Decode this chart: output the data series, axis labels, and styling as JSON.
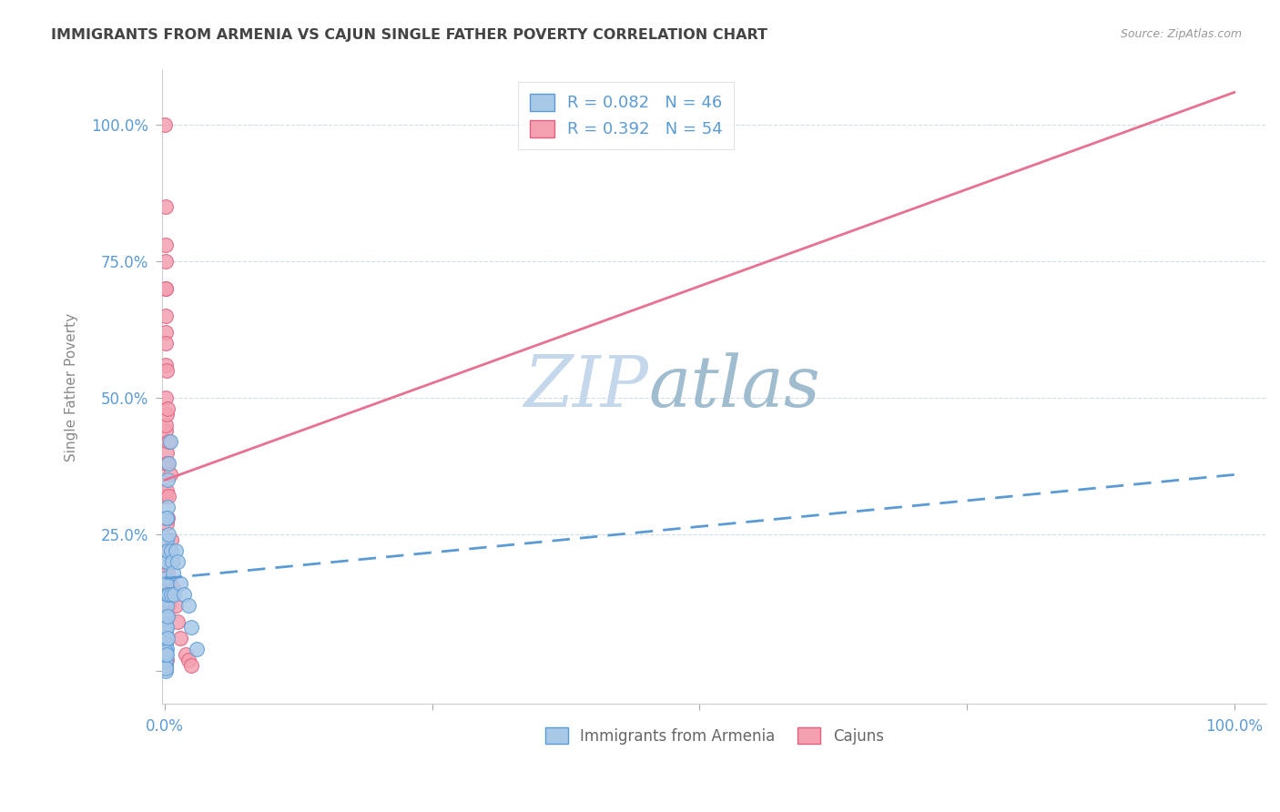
{
  "title": "IMMIGRANTS FROM ARMENIA VS CAJUN SINGLE FATHER POVERTY CORRELATION CHART",
  "source": "Source: ZipAtlas.com",
  "ylabel": "Single Father Poverty",
  "r1": 0.082,
  "n1": 46,
  "r2": 0.392,
  "n2": 54,
  "legend_label1": "Immigrants from Armenia",
  "legend_label2": "Cajuns",
  "color_armenia_fill": "#A8C8E8",
  "color_armenia_edge": "#5B9BD5",
  "color_cajun_fill": "#F4A0B0",
  "color_cajun_edge": "#E06080",
  "color_armenia_trendline": "#5B9BD5",
  "color_cajun_trendline": "#E87090",
  "axis_tick_color": "#5B9BD5",
  "ylabel_color": "#888888",
  "title_color": "#444444",
  "source_color": "#999999",
  "grid_color": "#D0DDE8",
  "watermark_zip_color": "#C5D8EB",
  "watermark_atlas_color": "#A0BDD0",
  "legend_text_color": "#5B9BD5",
  "background": "#FFFFFF",
  "armenia_points": [
    [
      0.001,
      0.17
    ],
    [
      0.001,
      0.13
    ],
    [
      0.001,
      0.1
    ],
    [
      0.001,
      0.085
    ],
    [
      0.001,
      0.07
    ],
    [
      0.001,
      0.05
    ],
    [
      0.001,
      0.04
    ],
    [
      0.001,
      0.025
    ],
    [
      0.001,
      0.01
    ],
    [
      0.0015,
      0.2
    ],
    [
      0.002,
      0.28
    ],
    [
      0.002,
      0.24
    ],
    [
      0.002,
      0.2
    ],
    [
      0.002,
      0.16
    ],
    [
      0.002,
      0.12
    ],
    [
      0.002,
      0.08
    ],
    [
      0.002,
      0.04
    ],
    [
      0.003,
      0.3
    ],
    [
      0.003,
      0.22
    ],
    [
      0.003,
      0.14
    ],
    [
      0.003,
      0.06
    ],
    [
      0.004,
      0.38
    ],
    [
      0.004,
      0.25
    ],
    [
      0.004,
      0.14
    ],
    [
      0.005,
      0.42
    ],
    [
      0.006,
      0.22
    ],
    [
      0.006,
      0.14
    ],
    [
      0.007,
      0.2
    ],
    [
      0.008,
      0.18
    ],
    [
      0.009,
      0.14
    ],
    [
      0.01,
      0.22
    ],
    [
      0.012,
      0.2
    ],
    [
      0.015,
      0.16
    ],
    [
      0.018,
      0.14
    ],
    [
      0.022,
      0.12
    ],
    [
      0.025,
      0.08
    ],
    [
      0.03,
      0.04
    ],
    [
      0.001,
      0.0
    ],
    [
      0.001,
      0.02
    ],
    [
      0.001,
      0.03
    ],
    [
      0.001,
      0.035
    ],
    [
      0.001,
      0.005
    ],
    [
      0.002,
      0.03
    ],
    [
      0.002,
      0.28
    ],
    [
      0.003,
      0.1
    ],
    [
      0.003,
      0.35
    ]
  ],
  "cajun_points": [
    [
      0.0,
      1.0
    ],
    [
      0.001,
      0.85
    ],
    [
      0.001,
      0.78
    ],
    [
      0.001,
      0.7
    ],
    [
      0.001,
      0.62
    ],
    [
      0.001,
      0.56
    ],
    [
      0.001,
      0.5
    ],
    [
      0.001,
      0.44
    ],
    [
      0.001,
      0.38
    ],
    [
      0.001,
      0.32
    ],
    [
      0.001,
      0.28
    ],
    [
      0.001,
      0.22
    ],
    [
      0.001,
      0.18
    ],
    [
      0.001,
      0.14
    ],
    [
      0.001,
      0.11
    ],
    [
      0.001,
      0.08
    ],
    [
      0.001,
      0.05
    ],
    [
      0.001,
      0.03
    ],
    [
      0.001,
      0.01
    ],
    [
      0.001,
      0.45
    ],
    [
      0.002,
      0.55
    ],
    [
      0.002,
      0.47
    ],
    [
      0.002,
      0.4
    ],
    [
      0.002,
      0.33
    ],
    [
      0.002,
      0.27
    ],
    [
      0.002,
      0.2
    ],
    [
      0.002,
      0.14
    ],
    [
      0.002,
      0.08
    ],
    [
      0.002,
      0.02
    ],
    [
      0.003,
      0.48
    ],
    [
      0.003,
      0.38
    ],
    [
      0.003,
      0.28
    ],
    [
      0.003,
      0.18
    ],
    [
      0.003,
      0.1
    ],
    [
      0.004,
      0.42
    ],
    [
      0.004,
      0.32
    ],
    [
      0.004,
      0.22
    ],
    [
      0.004,
      0.12
    ],
    [
      0.005,
      0.36
    ],
    [
      0.005,
      0.16
    ],
    [
      0.006,
      0.24
    ],
    [
      0.006,
      0.14
    ],
    [
      0.007,
      0.2
    ],
    [
      0.008,
      0.15
    ],
    [
      0.01,
      0.12
    ],
    [
      0.012,
      0.09
    ],
    [
      0.015,
      0.06
    ],
    [
      0.02,
      0.03
    ],
    [
      0.022,
      0.02
    ],
    [
      0.025,
      0.01
    ],
    [
      0.001,
      0.6
    ],
    [
      0.001,
      0.65
    ],
    [
      0.001,
      0.7
    ],
    [
      0.001,
      0.75
    ]
  ]
}
